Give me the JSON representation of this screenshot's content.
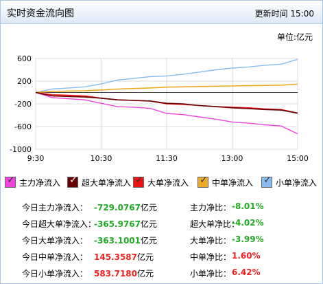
{
  "header": {
    "title": "实时资金流向图",
    "update_label": "更新时间",
    "update_time": "15:00"
  },
  "unit_label": "单位:亿元",
  "colors": {
    "main": "#ee44dd",
    "super": "#660000",
    "large": "#ee1111",
    "mid": "#eeaa22",
    "small": "#88bbee",
    "neg": "#22aa22",
    "pos": "#ee2222"
  },
  "legend": [
    {
      "label": "主力净流入",
      "color": "#ee44dd"
    },
    {
      "label": "超大单净流入",
      "color": "#660000"
    },
    {
      "label": "大单净流入",
      "color": "#ee1111"
    },
    {
      "label": "中单净流入",
      "color": "#eeaa22"
    },
    {
      "label": "小单净流入",
      "color": "#88bbee"
    }
  ],
  "stats": [
    {
      "label": "今日主力净流入：",
      "value": "-729.0767",
      "unit": "亿元",
      "ratio_label": "主力净比：",
      "ratio": "-8.01%",
      "sign": "neg"
    },
    {
      "label": "今日超大单净流入：",
      "value": "-365.9767",
      "unit": "亿元",
      "ratio_label": "超大单净比：",
      "ratio": "-4.02%",
      "sign": "neg"
    },
    {
      "label": "今日大单净流入：",
      "value": "-363.1001",
      "unit": "亿元",
      "ratio_label": "大单净比：",
      "ratio": "-3.99%",
      "sign": "neg"
    },
    {
      "label": "今日中单净流入：",
      "value": "145.3587",
      "unit": "亿元",
      "ratio_label": "中单净比：",
      "ratio": "1.60%",
      "sign": "pos"
    },
    {
      "label": "今日小单净流入：",
      "value": "583.7180",
      "unit": "亿元",
      "ratio_label": "小单净比：",
      "ratio": "6.42%",
      "sign": "pos"
    }
  ],
  "chart_data": {
    "type": "line",
    "title": "",
    "xlabel": "",
    "ylabel": "",
    "unit": "单位:亿元",
    "x_ticks": [
      "9:30",
      "10:30",
      "11:30",
      "13:00",
      "15:00"
    ],
    "y_ticks": [
      600,
      200,
      -200,
      -600,
      -1000
    ],
    "ylim": [
      -1000,
      600
    ],
    "grid": true,
    "legend_position": "bottom",
    "x": [
      "9:30",
      "9:45",
      "10:00",
      "10:15",
      "10:30",
      "10:45",
      "11:00",
      "11:15",
      "11:30",
      "13:15",
      "13:30",
      "13:45",
      "14:00",
      "14:15",
      "14:30",
      "14:45",
      "15:00"
    ],
    "series": [
      {
        "name": "主力净流入",
        "color": "#ee44dd",
        "values": [
          0,
          -90,
          -110,
          -130,
          -190,
          -250,
          -260,
          -280,
          -370,
          -390,
          -430,
          -470,
          -520,
          -540,
          -570,
          -590,
          -729
        ]
      },
      {
        "name": "超大单净流入",
        "color": "#660000",
        "values": [
          0,
          -60,
          -70,
          -80,
          -100,
          -130,
          -140,
          -150,
          -190,
          -200,
          -230,
          -250,
          -270,
          -285,
          -300,
          -310,
          -366
        ]
      },
      {
        "name": "大单净流入",
        "color": "#ee1111",
        "values": [
          0,
          -40,
          -50,
          -60,
          -100,
          -130,
          -140,
          -150,
          -200,
          -210,
          -230,
          -250,
          -260,
          -270,
          -290,
          -300,
          -363
        ]
      },
      {
        "name": "中单净流入",
        "color": "#eeaa22",
        "values": [
          0,
          20,
          25,
          30,
          45,
          60,
          70,
          80,
          95,
          100,
          105,
          110,
          115,
          120,
          125,
          130,
          145
        ]
      },
      {
        "name": "小单净流入",
        "color": "#88bbee",
        "values": [
          0,
          60,
          80,
          100,
          150,
          220,
          250,
          280,
          290,
          320,
          360,
          400,
          430,
          450,
          480,
          500,
          584
        ]
      }
    ]
  }
}
